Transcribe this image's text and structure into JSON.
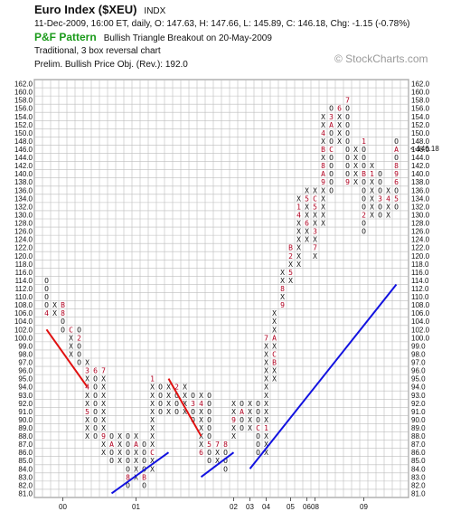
{
  "header": {
    "title": "Euro Index ($XEU)",
    "exchange": "INDX",
    "quote_line": "11-Dec-2009, 16:00 ET, daily, O: 147.63, H: 147.66, L: 145.89, C: 146.18, Chg: -1.15 (-0.78%)",
    "pattern_label": "P&F Pattern",
    "pattern_text": "Bullish Triangle Breakout on 20-May-2009",
    "chart_type": "Traditional, 3 box reversal chart",
    "price_objective": "Prelim. Bullish Price Obj. (Rev.): 192.0",
    "watermark": "© StockCharts.com"
  },
  "chart_data": {
    "type": "point-and-figure",
    "title": "Euro Index ($XEU)",
    "box_size": 1.0,
    "reversal": 3,
    "ylim": [
      81,
      162
    ],
    "y_tick_labels": [
      "162.0",
      "160.0",
      "158.0",
      "156.0",
      "154.0",
      "152.0",
      "150.0",
      "148.0",
      "146.0",
      "144.0",
      "142.0",
      "140.0",
      "138.0",
      "136.0",
      "134.0",
      "132.0",
      "130.0",
      "128.0",
      "126.0",
      "124.0",
      "122.0",
      "120.0",
      "118.0",
      "116.0",
      "114.0",
      "112.0",
      "110.0",
      "108.0",
      "106.0",
      "104.0",
      "102.0",
      "100.0",
      "99.0",
      "98.0",
      "97.0",
      "96.0",
      "95.0",
      "94.0",
      "93.0",
      "92.0",
      "91.0",
      "90.0",
      "89.0",
      "88.0",
      "87.0",
      "86.0",
      "85.0",
      "84.0",
      "83.0",
      "82.0",
      "81.0"
    ],
    "x_tick_labels": [
      {
        "label": "00",
        "col": 3
      },
      {
        "label": "01",
        "col": 12
      },
      {
        "label": "02",
        "col": 24
      },
      {
        "label": "03",
        "col": 26
      },
      {
        "label": "04",
        "col": 28
      },
      {
        "label": "05",
        "col": 31
      },
      {
        "label": "06",
        "col": 33
      },
      {
        "label": "08",
        "col": 34
      },
      {
        "label": "09",
        "col": 40
      }
    ],
    "grid": true,
    "last_price": 146.18,
    "last_price_label": "146.18",
    "colors": {
      "x": "#111111",
      "o": "#111111",
      "month": "#b00020",
      "trend_red": "#e01010",
      "trend_blue": "#1212e0",
      "grid": "#bdbdbd",
      "current": "#b00020"
    },
    "columns": [
      {
        "i": 1,
        "t": "O",
        "low": 106,
        "high": 113,
        "m": {
          "113": "2",
          "107": "3",
          "106": "4"
        }
      },
      {
        "i": 2,
        "t": "X",
        "low": 105,
        "high": 107,
        "m": {
          "107": "5"
        }
      },
      {
        "i": 3,
        "t": "O",
        "low": 102,
        "high": 108,
        "m": {
          "108": "B",
          "106": "8",
          "105": "7"
        }
      },
      {
        "i": 4,
        "t": "X",
        "low": 98,
        "high": 102,
        "m": {
          "102": "C"
        }
      },
      {
        "i": 5,
        "t": "O",
        "low": 97,
        "high": 101,
        "m": {
          "101": "1",
          "100": "2"
        }
      },
      {
        "i": 6,
        "t": "X",
        "low": 88,
        "high": 97,
        "m": {
          "96": "3",
          "94": "4",
          "91": "5"
        }
      },
      {
        "i": 7,
        "t": "O",
        "low": 88,
        "high": 96,
        "m": {
          "96": "6"
        }
      },
      {
        "i": 8,
        "t": "X",
        "low": 86,
        "high": 96,
        "m": {
          "96": "7",
          "88": "9"
        }
      },
      {
        "i": 9,
        "t": "O",
        "low": 85,
        "high": 88,
        "m": {
          "87": "A"
        }
      },
      {
        "i": 10,
        "t": "X",
        "low": 85,
        "high": 88
      },
      {
        "i": 11,
        "t": "O",
        "low": 82,
        "high": 88,
        "m": {
          "83": "8"
        }
      },
      {
        "i": 12,
        "t": "X",
        "low": 83,
        "high": 88,
        "m": {
          "87": "A"
        }
      },
      {
        "i": 13,
        "t": "O",
        "low": 82,
        "high": 87,
        "m": {
          "83": "B"
        }
      },
      {
        "i": 14,
        "t": "X",
        "low": 84,
        "high": 95,
        "m": {
          "95": "1",
          "86": "C"
        }
      },
      {
        "i": 15,
        "t": "O",
        "low": 91,
        "high": 94
      },
      {
        "i": 16,
        "t": "X",
        "low": 91,
        "high": 94
      },
      {
        "i": 17,
        "t": "O",
        "low": 91,
        "high": 94,
        "m": {
          "94": "2"
        }
      },
      {
        "i": 18,
        "t": "X",
        "low": 91,
        "high": 94
      },
      {
        "i": 19,
        "t": "O",
        "low": 90,
        "high": 93,
        "m": {
          "92": "3"
        }
      },
      {
        "i": 20,
        "t": "X",
        "low": 86,
        "high": 93,
        "m": {
          "92": "4",
          "86": "6"
        }
      },
      {
        "i": 21,
        "t": "O",
        "low": 85,
        "high": 93,
        "m": {
          "87": "5"
        }
      },
      {
        "i": 22,
        "t": "X",
        "low": 85,
        "high": 87,
        "m": {
          "87": "7"
        }
      },
      {
        "i": 23,
        "t": "O",
        "low": 84,
        "high": 87,
        "m": {
          "87": "8"
        }
      },
      {
        "i": 24,
        "t": "X",
        "low": 88,
        "high": 92,
        "m": {
          "90": "9"
        }
      },
      {
        "i": 25,
        "t": "O",
        "low": 89,
        "high": 92,
        "m": {
          "91": "A"
        }
      },
      {
        "i": 26,
        "t": "X",
        "low": 89,
        "high": 92
      },
      {
        "i": 27,
        "t": "O",
        "low": 86,
        "high": 92,
        "m": {
          "89": "C"
        }
      },
      {
        "i": 28,
        "t": "X",
        "low": 86,
        "high": 100,
        "m": {
          "89": "1",
          "100": "7"
        }
      },
      {
        "i": 29,
        "t": "X",
        "low": 95,
        "high": 106,
        "m": {
          "97": "B",
          "98": "C",
          "100": "A"
        }
      },
      {
        "i": 30,
        "t": "X",
        "low": 108,
        "high": 116,
        "m": {
          "108": "9",
          "112": "8",
          "113": "3"
        }
      },
      {
        "i": 31,
        "t": "X",
        "low": 114,
        "high": 122,
        "m": {
          "122": "B",
          "120": "2",
          "116": "5",
          "117": "6"
        }
      },
      {
        "i": 32,
        "t": "X",
        "low": 118,
        "high": 134,
        "m": {
          "132": "1",
          "130": "4"
        }
      },
      {
        "i": 33,
        "t": "X",
        "low": 124,
        "high": 136,
        "m": {
          "134": "5",
          "128": "6"
        }
      },
      {
        "i": 34,
        "t": "X",
        "low": 120,
        "high": 136,
        "m": {
          "134": "C",
          "132": "5",
          "126": "3",
          "122": "7"
        }
      },
      {
        "i": 35,
        "t": "X",
        "low": 128,
        "high": 154,
        "m": {
          "138": "9",
          "146": "B",
          "150": "4",
          "156": "4",
          "158": "5",
          "140": "A",
          "142": "8"
        }
      },
      {
        "i": 36,
        "t": "O",
        "low": 136,
        "high": 156,
        "m": {
          "154": "3",
          "152": "A",
          "146": "C"
        }
      },
      {
        "i": 37,
        "t": "X",
        "low": 148,
        "high": 156,
        "m": {
          "156": "6"
        }
      },
      {
        "i": 38,
        "t": "O",
        "low": 138,
        "high": 158,
        "m": {
          "158": "7",
          "138": "9"
        }
      },
      {
        "i": 39,
        "t": "X",
        "low": 138,
        "high": 146
      },
      {
        "i": 40,
        "t": "O",
        "low": 126,
        "high": 148,
        "m": {
          "148": "1",
          "140": "B",
          "130": "2"
        }
      },
      {
        "i": 41,
        "t": "X",
        "low": 130,
        "high": 142,
        "m": {
          "140": "1"
        }
      },
      {
        "i": 42,
        "t": "O",
        "low": 130,
        "high": 140,
        "m": {
          "134": "3"
        }
      },
      {
        "i": 43,
        "t": "X",
        "low": 130,
        "high": 136,
        "m": {
          "134": "4"
        }
      },
      {
        "i": 44,
        "t": "O",
        "low": 132,
        "high": 148,
        "m": {
          "146": "A",
          "140": "9",
          "142": "8",
          "138": "6",
          "134": "5"
        }
      }
    ],
    "trendlines": [
      {
        "color": "red",
        "from": [
          1,
          102
        ],
        "to": [
          6,
          94
        ]
      },
      {
        "color": "red",
        "from": [
          16,
          95
        ],
        "to": [
          20,
          88
        ]
      },
      {
        "color": "blue",
        "from": [
          9,
          81
        ],
        "to": [
          16,
          86
        ]
      },
      {
        "color": "blue",
        "from": [
          20,
          83
        ],
        "to": [
          24,
          86
        ]
      },
      {
        "color": "blue",
        "from": [
          26,
          84
        ],
        "to": [
          44,
          113
        ]
      }
    ]
  }
}
